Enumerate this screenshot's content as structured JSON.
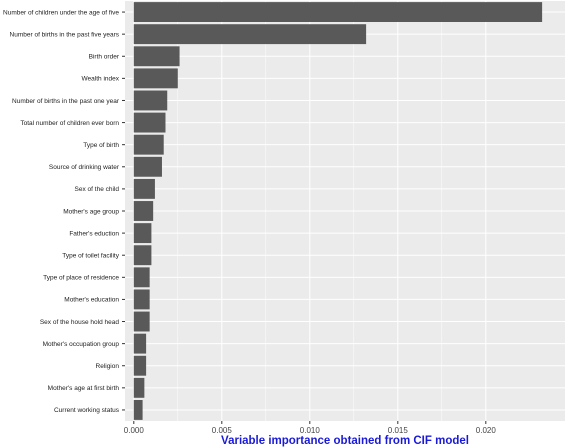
{
  "chart_data": {
    "type": "bar",
    "orientation": "horizontal",
    "title": "",
    "xlabel": "Variable importance obtained from CIF model",
    "ylabel": "",
    "xlim": [
      -0.0005,
      0.0245
    ],
    "xticks": [
      "0.000",
      "0.005",
      "0.010",
      "0.015",
      "0.020"
    ],
    "grid": true,
    "legend": "none",
    "bar_color": "#595959",
    "panel_color": "#ebebeb",
    "xlabel_color": "#1a1ad6",
    "categories": [
      "Number of children under the age of five",
      "Number of births in the past five years",
      "Birth order",
      "Wealth index",
      "Number of births in the past one year",
      "Total number of children ever born",
      "Type of birth",
      "Source of drinking water",
      "Sex of the child",
      "Mother's age group",
      "Father's eduction",
      "Type of toilet facility",
      "Type of place of residence",
      "Mother's education",
      "Sex of the house hold head",
      "Mother's occupation group",
      "Religion",
      "Mother's age at first birth",
      "Current working status"
    ],
    "values": [
      0.0232,
      0.0132,
      0.0026,
      0.0025,
      0.0019,
      0.0018,
      0.0017,
      0.0016,
      0.0012,
      0.0011,
      0.001,
      0.001,
      0.0009,
      0.0009,
      0.0009,
      0.0007,
      0.0007,
      0.0006,
      0.0005
    ]
  }
}
